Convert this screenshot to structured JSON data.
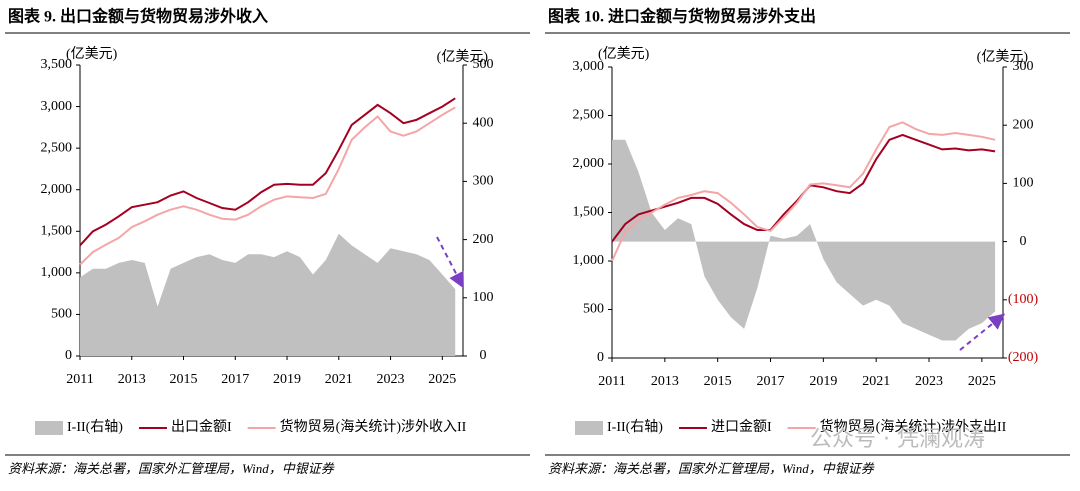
{
  "chart_data": [
    {
      "type": "line",
      "title": "图表 9. 出口金额与货物贸易涉外收入",
      "ylabel": "(亿美元)",
      "y2label": "(亿美元)",
      "x": [
        2011,
        2011.5,
        2012,
        2012.5,
        2013,
        2013.5,
        2014,
        2014.5,
        2015,
        2015.5,
        2016,
        2016.5,
        2017,
        2017.5,
        2018,
        2018.5,
        2019,
        2019.5,
        2020,
        2020.5,
        2021,
        2021.5,
        2022,
        2022.5,
        2023,
        2023.5,
        2024,
        2024.5,
        2025,
        2025.5
      ],
      "xlim": [
        2011,
        2025.8
      ],
      "xticks": [
        2011,
        2013,
        2015,
        2017,
        2019,
        2021,
        2023,
        2025
      ],
      "ylim": [
        0,
        3500
      ],
      "yticks": [
        0,
        500,
        {
          "value": 1000,
          "label": "1,000"
        },
        {
          "value": 1500,
          "label": "1,500"
        },
        {
          "value": 2000,
          "label": "2,000"
        },
        {
          "value": 2500,
          "label": "2,500"
        },
        {
          "value": 3000,
          "label": "3,000"
        },
        {
          "value": 3500,
          "label": "3,500"
        }
      ],
      "y2lim": [
        0,
        500
      ],
      "y2ticks": [
        0,
        100,
        200,
        300,
        400,
        500
      ],
      "series": [
        {
          "name": "I-II(右轴)",
          "color": "#c0c0c0",
          "axis": "y2",
          "style": "area",
          "values": [
            135,
            150,
            150,
            160,
            165,
            160,
            85,
            150,
            160,
            170,
            175,
            165,
            160,
            175,
            175,
            170,
            180,
            170,
            140,
            165,
            210,
            190,
            175,
            160,
            185,
            180,
            175,
            165,
            140,
            115
          ]
        },
        {
          "name": "出口金额I",
          "color": "#a50021",
          "values": [
            1330,
            1500,
            1580,
            1680,
            1790,
            1820,
            1850,
            1930,
            1980,
            1900,
            1840,
            1780,
            1760,
            1850,
            1970,
            2060,
            2070,
            2060,
            2060,
            2200,
            2480,
            2780,
            2900,
            3020,
            2920,
            2800,
            2840,
            2920,
            3000,
            3100
          ]
        },
        {
          "name": "货物贸易(海关统计)涉外收入II",
          "color": "#f4a6a6",
          "values": [
            1100,
            1250,
            1340,
            1420,
            1550,
            1620,
            1700,
            1760,
            1800,
            1760,
            1700,
            1650,
            1640,
            1700,
            1800,
            1880,
            1920,
            1910,
            1900,
            1950,
            2250,
            2600,
            2750,
            2880,
            2700,
            2650,
            2700,
            2800,
            2900,
            2990
          ]
        }
      ],
      "source": "资料来源：海关总署，国家外汇管理局，Wind，中银证券"
    },
    {
      "type": "line",
      "title": "图表 10. 进口金额与货物贸易涉外支出",
      "ylabel": "(亿美元)",
      "y2label": "(亿美元)",
      "x": [
        2011,
        2011.5,
        2012,
        2012.5,
        2013,
        2013.5,
        2014,
        2014.5,
        2015,
        2015.5,
        2016,
        2016.5,
        2017,
        2017.5,
        2018,
        2018.5,
        2019,
        2019.5,
        2020,
        2020.5,
        2021,
        2021.5,
        2022,
        2022.5,
        2023,
        2023.5,
        2024,
        2024.5,
        2025,
        2025.5
      ],
      "xlim": [
        2011,
        2025.8
      ],
      "xticks": [
        2011,
        2013,
        2015,
        2017,
        2019,
        2021,
        2023,
        2025
      ],
      "ylim": [
        0,
        3000
      ],
      "yticks": [
        0,
        500,
        {
          "value": 1000,
          "label": "1,000"
        },
        {
          "value": 1500,
          "label": "1,500"
        },
        {
          "value": 2000,
          "label": "2,000"
        },
        {
          "value": 2500,
          "label": "2,500"
        },
        {
          "value": 3000,
          "label": "3,000"
        }
      ],
      "y2lim": [
        -200,
        300
      ],
      "y2ticks": [
        {
          "value": -200,
          "label": "(200)"
        },
        {
          "value": -100,
          "label": "(100)"
        },
        0,
        100,
        200,
        300
      ],
      "y2_negative_tick_color": "#c00000",
      "series": [
        {
          "name": "I-II(右轴)",
          "color": "#c0c0c0",
          "axis": "y2",
          "style": "area",
          "values": [
            175,
            175,
            120,
            50,
            20,
            40,
            30,
            -60,
            -100,
            -130,
            -150,
            -80,
            10,
            5,
            10,
            30,
            -30,
            -70,
            -90,
            -110,
            -100,
            -110,
            -140,
            -150,
            -160,
            -170,
            -170,
            -150,
            -140,
            -120
          ]
        },
        {
          "name": "进口金额I",
          "color": "#a50021",
          "values": [
            1200,
            1380,
            1480,
            1520,
            1560,
            1600,
            1650,
            1650,
            1590,
            1480,
            1380,
            1320,
            1320,
            1480,
            1620,
            1780,
            1760,
            1720,
            1700,
            1800,
            2050,
            2250,
            2300,
            2250,
            2200,
            2150,
            2160,
            2140,
            2150,
            2130
          ]
        },
        {
          "name": "货物贸易(海关统计)涉外支出II",
          "color": "#f4a6a6",
          "values": [
            1000,
            1300,
            1420,
            1500,
            1580,
            1650,
            1680,
            1720,
            1700,
            1600,
            1480,
            1350,
            1310,
            1450,
            1600,
            1790,
            1800,
            1780,
            1760,
            1900,
            2150,
            2380,
            2430,
            2360,
            2310,
            2300,
            2320,
            2300,
            2280,
            2250
          ]
        }
      ],
      "source": "资料来源：海关总署，国家外汇管理局，Wind，中银证券",
      "watermark": "公众号 · 凭澜观涛"
    }
  ]
}
